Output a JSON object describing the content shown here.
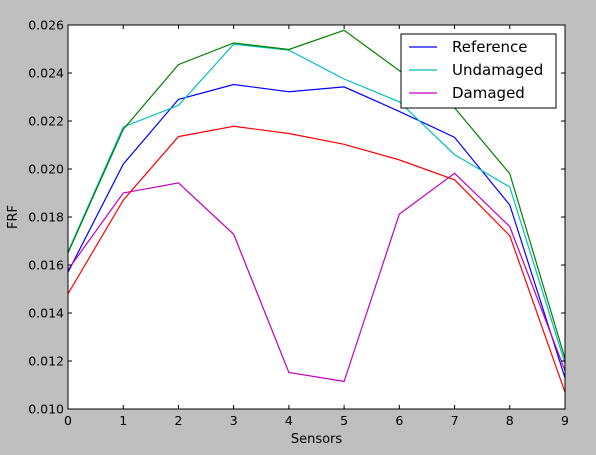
{
  "chart_data": {
    "type": "line",
    "xlabel": "Sensors",
    "ylabel": "FRF",
    "xlim": [
      0,
      9
    ],
    "ylim": [
      0.01,
      0.026
    ],
    "x": [
      0,
      1,
      2,
      3,
      4,
      5,
      6,
      7,
      8,
      9
    ],
    "xticks": [
      "0",
      "1",
      "2",
      "3",
      "4",
      "5",
      "6",
      "7",
      "8",
      "9"
    ],
    "yticks": [
      {
        "value": 0.01,
        "label": "0.010"
      },
      {
        "value": 0.012,
        "label": "0.012"
      },
      {
        "value": 0.014,
        "label": "0.014"
      },
      {
        "value": 0.016,
        "label": "0.016"
      },
      {
        "value": 0.018,
        "label": "0.018"
      },
      {
        "value": 0.02,
        "label": "0.020"
      },
      {
        "value": 0.022,
        "label": "0.022"
      },
      {
        "value": 0.024,
        "label": "0.024"
      },
      {
        "value": 0.026,
        "label": "0.026"
      }
    ],
    "grid": false,
    "legend_position": "top-right",
    "series": [
      {
        "name": "Reference",
        "color": "#0000ff",
        "values": [
          0.0157,
          0.0202,
          0.0229,
          0.02352,
          0.02322,
          0.02342,
          0.0224,
          0.02132,
          0.0185,
          0.0113
        ]
      },
      {
        "name": "Undamaged",
        "color": "#00bfbf",
        "values": [
          0.01655,
          0.02175,
          0.02265,
          0.0252,
          0.02495,
          0.02375,
          0.0228,
          0.0206,
          0.01925,
          0.0119
        ]
      },
      {
        "name": "Damaged",
        "color": "#bf00bf",
        "values": [
          0.0158,
          0.019,
          0.01942,
          0.01728,
          0.01152,
          0.01115,
          0.01812,
          0.01982,
          0.0176,
          0.0116
        ]
      },
      {
        "color": "#008000",
        "values": [
          0.0165,
          0.02165,
          0.02435,
          0.02525,
          0.02498,
          0.02578,
          0.0241,
          0.02255,
          0.0198,
          0.0121
        ]
      },
      {
        "color": "#ff0000",
        "values": [
          0.0148,
          0.0187,
          0.02135,
          0.02178,
          0.02148,
          0.02103,
          0.02038,
          0.01955,
          0.01722,
          0.0107
        ]
      }
    ]
  }
}
